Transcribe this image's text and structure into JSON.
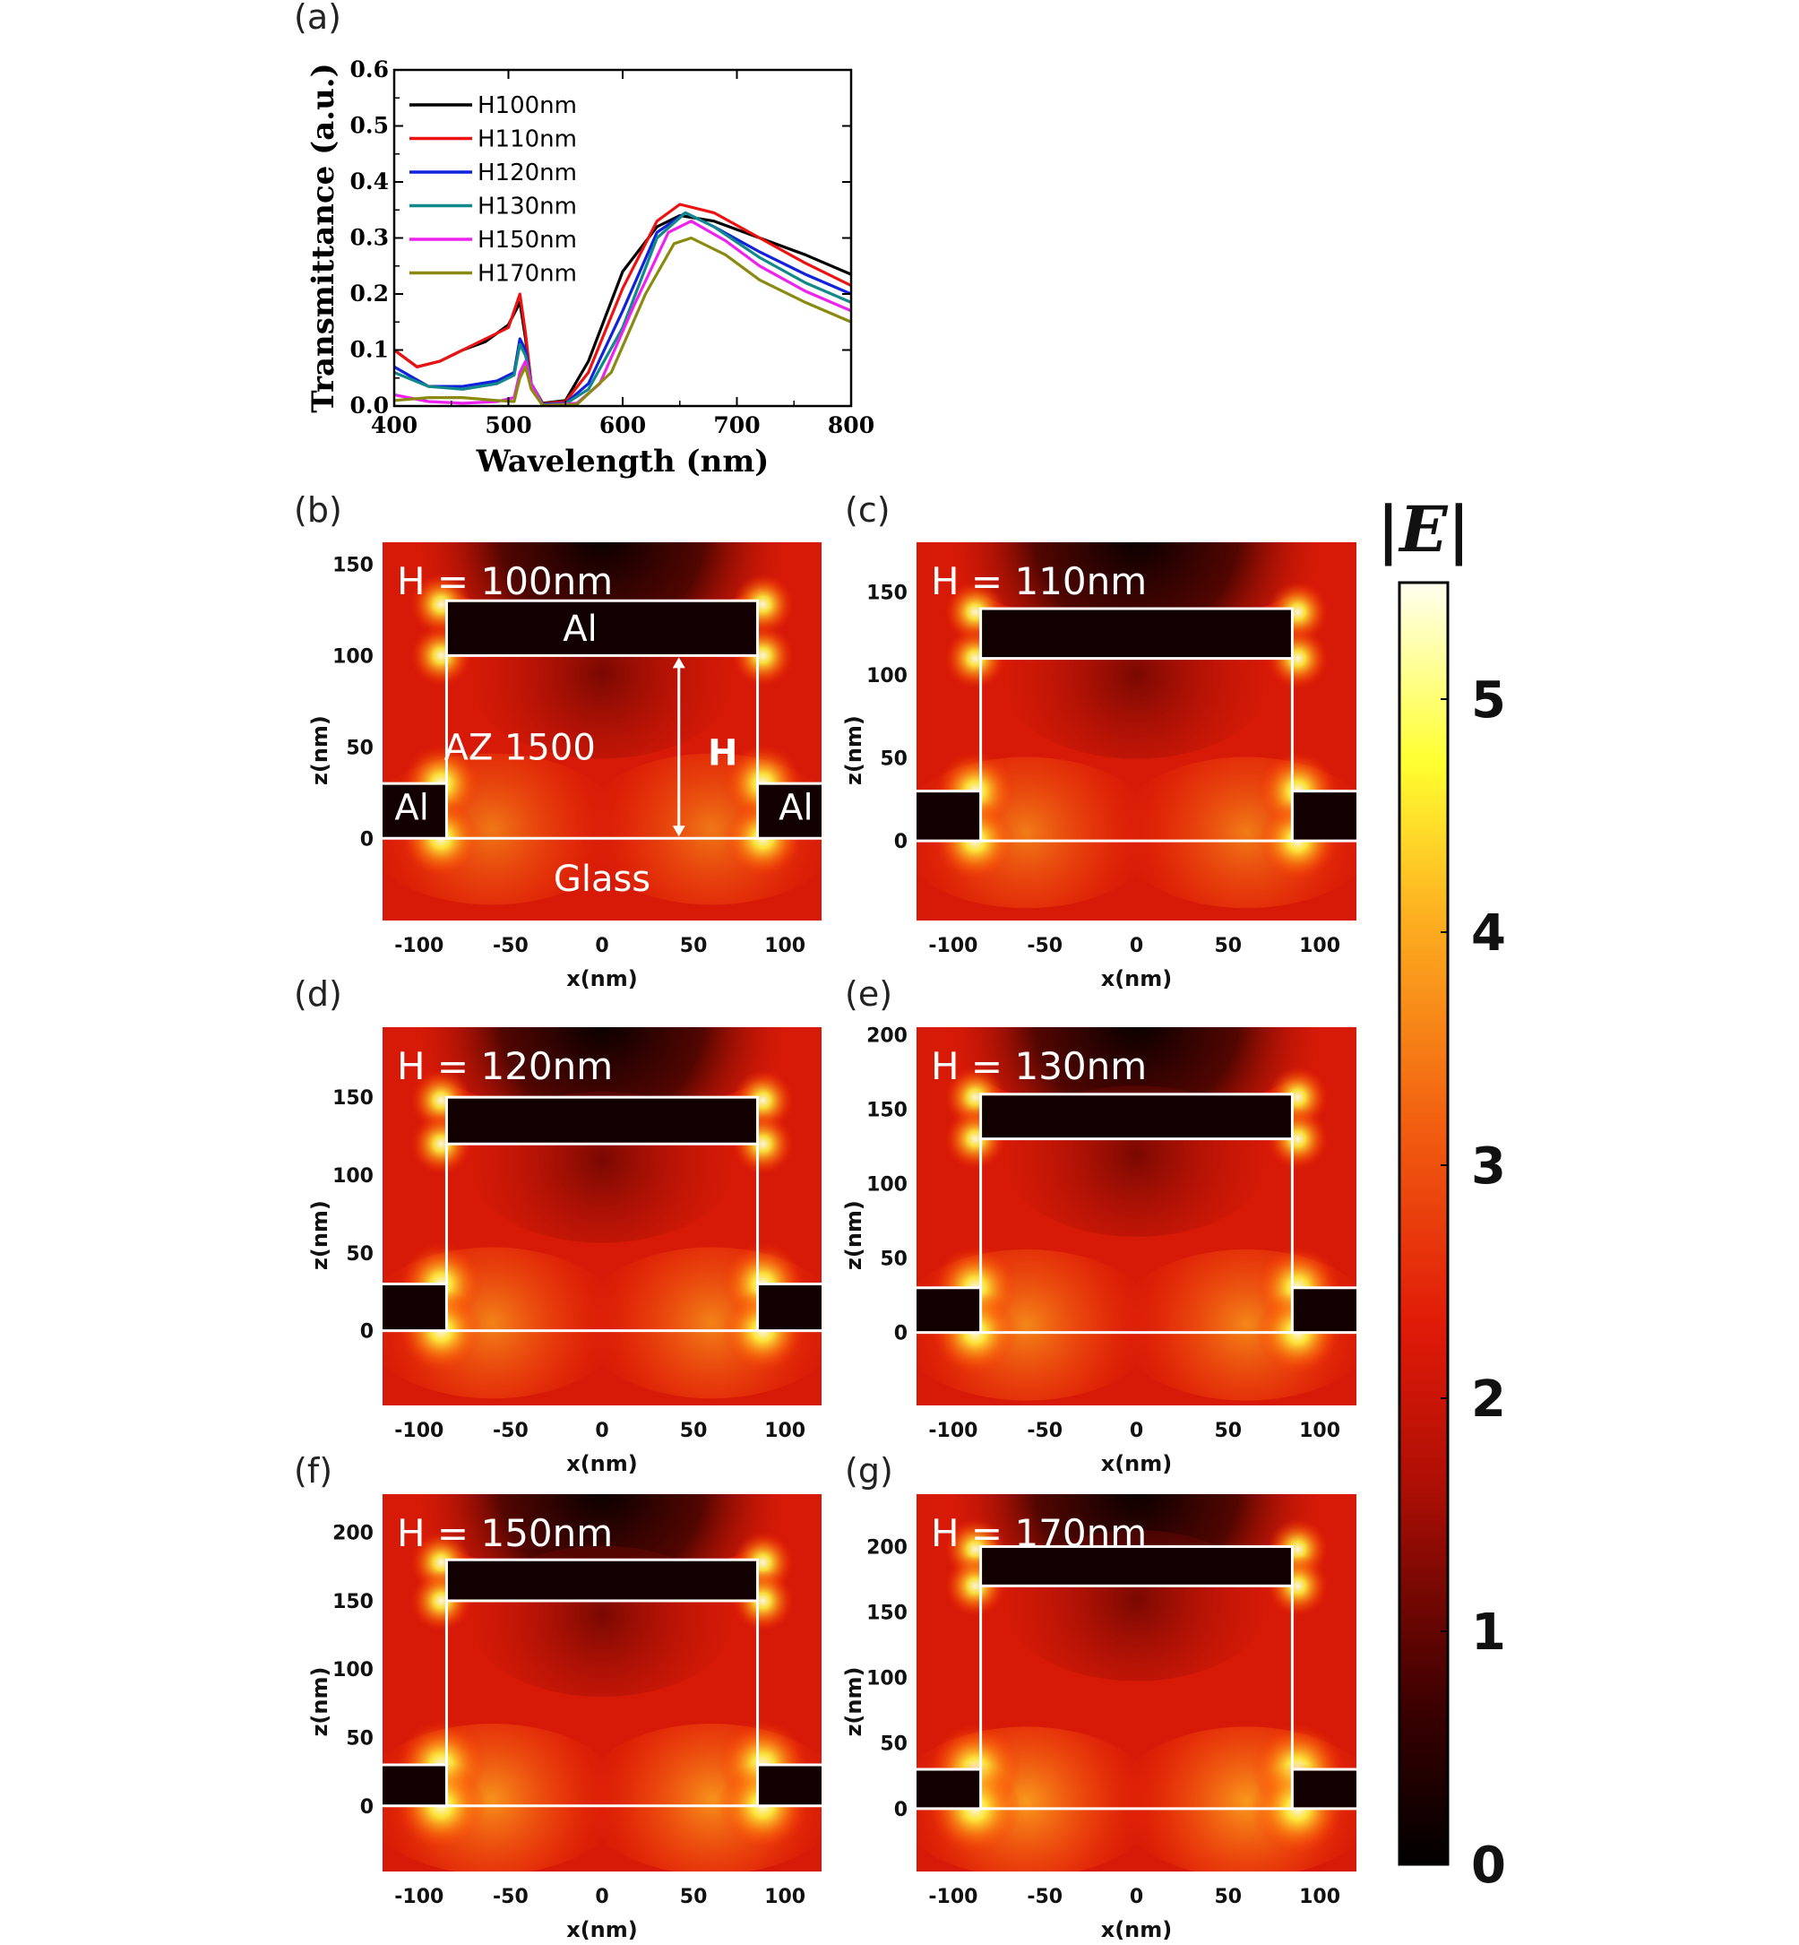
{
  "panel_labels": [
    "(a)",
    "(b)",
    "(c)",
    "(d)",
    "(e)",
    "(f)",
    "(g)"
  ],
  "colorbar": {
    "title": "|E|",
    "ticks": [
      "0",
      "1",
      "2",
      "3",
      "4",
      "5"
    ],
    "tick_values": [
      0,
      1,
      2,
      3,
      4,
      5
    ],
    "range": [
      0,
      5.5
    ]
  },
  "annotations": {
    "al_top": "Al",
    "al_left": "Al",
    "al_right": "Al",
    "resist": "AZ 1500",
    "glass": "Glass",
    "height_arrow": "H"
  },
  "colors": {
    "H100nm": "#000000",
    "H110nm": "#ee1111",
    "H120nm": "#1122dd",
    "H130nm": "#11898a",
    "H150nm": "#ee22ee",
    "H170nm": "#8a8a10",
    "field_low": "#000000",
    "field_mid": "#d61a07",
    "field_high": "#fffff0"
  },
  "chart_data": [
    {
      "type": "line",
      "panel": "(a)",
      "xlabel": "Wavelength (nm)",
      "ylabel": "Transmittance (a.u.)",
      "xlim": [
        400,
        800
      ],
      "ylim": [
        0.0,
        0.6
      ],
      "xticks": [
        "400",
        "500",
        "600",
        "700",
        "800"
      ],
      "yticks": [
        "0.0",
        "0.1",
        "0.2",
        "0.3",
        "0.4",
        "0.5",
        "0.6"
      ],
      "legend": "top-left",
      "series": [
        {
          "name": "H100nm",
          "x": [
            400,
            420,
            440,
            460,
            480,
            500,
            510,
            515,
            520,
            530,
            550,
            570,
            600,
            630,
            650,
            680,
            720,
            760,
            800
          ],
          "y": [
            0.1,
            0.07,
            0.08,
            0.1,
            0.115,
            0.145,
            0.185,
            0.12,
            0.04,
            0.005,
            0.01,
            0.08,
            0.24,
            0.32,
            0.34,
            0.33,
            0.3,
            0.27,
            0.235
          ]
        },
        {
          "name": "H110nm",
          "x": [
            400,
            420,
            440,
            460,
            480,
            500,
            510,
            515,
            520,
            530,
            550,
            570,
            600,
            630,
            650,
            680,
            720,
            760,
            800
          ],
          "y": [
            0.1,
            0.07,
            0.08,
            0.1,
            0.12,
            0.14,
            0.2,
            0.13,
            0.04,
            0.004,
            0.008,
            0.06,
            0.21,
            0.33,
            0.36,
            0.345,
            0.3,
            0.255,
            0.215
          ]
        },
        {
          "name": "H120nm",
          "x": [
            400,
            430,
            460,
            490,
            505,
            510,
            515,
            520,
            530,
            550,
            570,
            600,
            630,
            655,
            680,
            720,
            760,
            800
          ],
          "y": [
            0.07,
            0.035,
            0.035,
            0.045,
            0.06,
            0.12,
            0.1,
            0.04,
            0.003,
            0.005,
            0.04,
            0.17,
            0.31,
            0.345,
            0.32,
            0.275,
            0.235,
            0.2
          ]
        },
        {
          "name": "H130nm",
          "x": [
            400,
            430,
            460,
            490,
            505,
            510,
            515,
            520,
            530,
            550,
            570,
            600,
            630,
            655,
            680,
            720,
            760,
            800
          ],
          "y": [
            0.06,
            0.035,
            0.03,
            0.04,
            0.055,
            0.11,
            0.09,
            0.04,
            0.002,
            0.004,
            0.03,
            0.14,
            0.3,
            0.345,
            0.32,
            0.265,
            0.22,
            0.185
          ]
        },
        {
          "name": "H150nm",
          "x": [
            400,
            430,
            460,
            490,
            505,
            510,
            515,
            520,
            530,
            560,
            580,
            610,
            640,
            660,
            690,
            720,
            760,
            800
          ],
          "y": [
            0.02,
            0.008,
            0.005,
            0.008,
            0.015,
            0.06,
            0.08,
            0.04,
            0.001,
            0.005,
            0.04,
            0.18,
            0.31,
            0.33,
            0.295,
            0.25,
            0.205,
            0.17
          ]
        },
        {
          "name": "H170nm",
          "x": [
            400,
            430,
            460,
            490,
            505,
            510,
            515,
            520,
            530,
            560,
            590,
            620,
            645,
            660,
            690,
            720,
            760,
            800
          ],
          "y": [
            0.01,
            0.015,
            0.015,
            0.01,
            0.008,
            0.05,
            0.07,
            0.03,
            0.001,
            0.003,
            0.06,
            0.2,
            0.29,
            0.3,
            0.27,
            0.225,
            0.185,
            0.15
          ]
        }
      ]
    },
    {
      "type": "heatmap",
      "panel": "(b)",
      "label": "H = 100nm",
      "H": 100,
      "xlabel": "x(nm)",
      "ylabel": "z(nm)",
      "xlim": [
        -120,
        120
      ],
      "ylim": [
        -45,
        162
      ],
      "xticks": [
        -100,
        -50,
        0,
        50,
        100
      ],
      "yticks": [
        0,
        50,
        100,
        150
      ],
      "intensity": 0.55
    },
    {
      "type": "heatmap",
      "panel": "(c)",
      "label": "H = 110nm",
      "H": 110,
      "xlabel": "x(nm)",
      "ylabel": "z(nm)",
      "xlim": [
        -120,
        120
      ],
      "ylim": [
        -48,
        180
      ],
      "xticks": [
        -100,
        -50,
        0,
        50,
        100
      ],
      "yticks": [
        0,
        50,
        100,
        150
      ],
      "intensity": 0.6
    },
    {
      "type": "heatmap",
      "panel": "(d)",
      "label": "H = 120nm",
      "H": 120,
      "xlabel": "x(nm)",
      "ylabel": "z(nm)",
      "xlim": [
        -120,
        120
      ],
      "ylim": [
        -48,
        195
      ],
      "xticks": [
        -100,
        -50,
        0,
        50,
        100
      ],
      "yticks": [
        0,
        50,
        100,
        150
      ],
      "intensity": 0.7
    },
    {
      "type": "heatmap",
      "panel": "(e)",
      "label": "H = 130nm",
      "H": 130,
      "xlabel": "x(nm)",
      "ylabel": "z(nm)",
      "xlim": [
        -120,
        120
      ],
      "ylim": [
        -49,
        205
      ],
      "xticks": [
        -100,
        -50,
        0,
        50,
        100
      ],
      "yticks": [
        0,
        50,
        100,
        150,
        200
      ],
      "intensity": 0.75
    },
    {
      "type": "heatmap",
      "panel": "(f)",
      "label": "H = 150nm",
      "H": 150,
      "xlabel": "x(nm)",
      "ylabel": "z(nm)",
      "xlim": [
        -120,
        120
      ],
      "ylim": [
        -48,
        228
      ],
      "xticks": [
        -100,
        -50,
        0,
        50,
        100
      ],
      "yticks": [
        0,
        50,
        100,
        150,
        200
      ],
      "intensity": 0.9
    },
    {
      "type": "heatmap",
      "panel": "(g)",
      "label": "H = 170nm",
      "H": 170,
      "xlabel": "x(nm)",
      "ylabel": "z(nm)",
      "xlim": [
        -120,
        120
      ],
      "ylim": [
        -48,
        240
      ],
      "xticks": [
        -100,
        -50,
        0,
        50,
        100
      ],
      "yticks": [
        0,
        50,
        100,
        150,
        200
      ],
      "intensity": 1.0
    }
  ]
}
